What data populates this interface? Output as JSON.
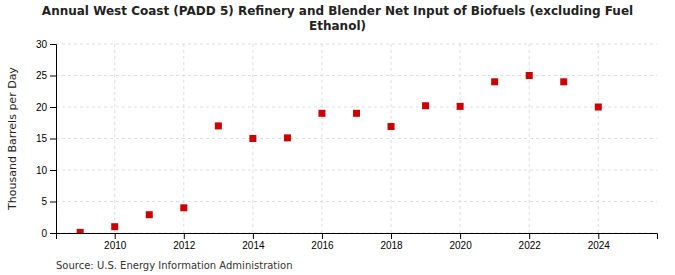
{
  "chart_data": {
    "type": "scatter",
    "title": "Annual West Coast (PADD 5) Refinery and Blender Net Input of Biofuels (excluding Fuel\nEthanol)",
    "y_label": "Thousand Barrels per Day",
    "source": "Source: U.S. Energy Information Administration",
    "x": [
      2009,
      2010,
      2011,
      2012,
      2013,
      2014,
      2015,
      2016,
      2017,
      2018,
      2019,
      2020,
      2021,
      2022,
      2023,
      2024
    ],
    "values": [
      0.1,
      1.0,
      2.9,
      4.0,
      17.0,
      15.0,
      15.1,
      19.0,
      19.0,
      16.9,
      20.2,
      20.1,
      24.0,
      25.0,
      24.0,
      20.0
    ],
    "color": "#cc0000",
    "marker": "square",
    "grid": true,
    "xlim": [
      2008.3,
      2025.7
    ],
    "xticks": [
      2010,
      2012,
      2014,
      2016,
      2018,
      2020,
      2022,
      2024
    ],
    "ylim": [
      0,
      30
    ],
    "yticks": [
      0,
      5,
      10,
      15,
      20,
      25,
      30
    ]
  }
}
